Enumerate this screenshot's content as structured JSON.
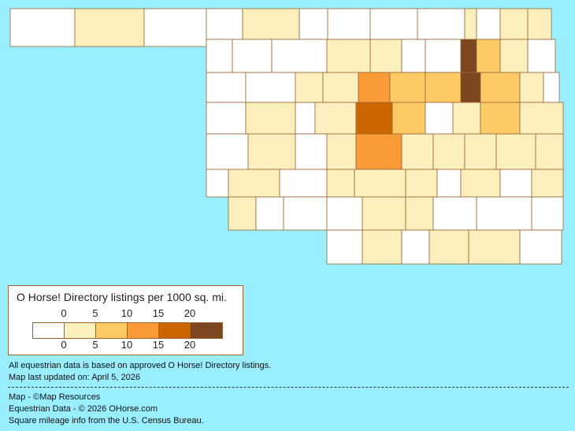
{
  "legend": {
    "title": "O Horse! Directory listings per 1000 sq. mi.",
    "ticks": [
      "0",
      "5",
      "10",
      "15",
      "20"
    ],
    "colors": [
      "#FFFFFF",
      "#FBF0BD",
      "#FCCB66",
      "#FB9B38",
      "#CC6600",
      "#7B4620"
    ]
  },
  "colors": {
    "background": "#99EEFF",
    "border": "#996633"
  },
  "notes": {
    "data_basis": "All equestrian data is based on approved O Horse! Directory listings.",
    "updated": "Map last updated on: April 5, 2026",
    "map_credit": "Map - ©Map Resources",
    "data_credit": "Equestrian Data - © 2026 OHorse.com",
    "census_credit": "Square mileage info from the U.S. Census Bureau."
  }
}
